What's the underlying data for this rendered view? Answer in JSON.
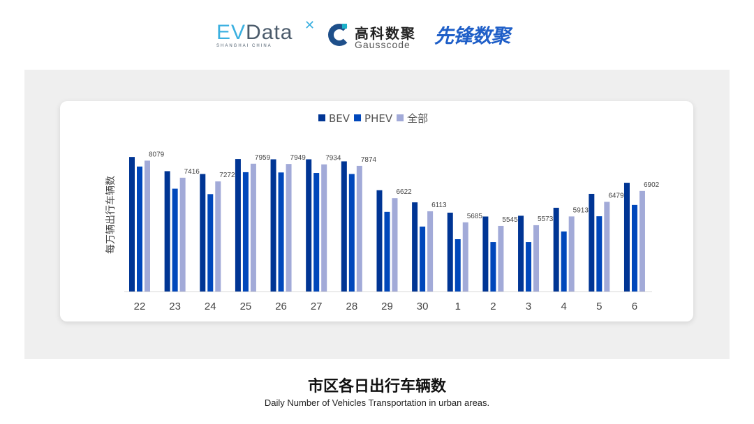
{
  "logos": {
    "evdata": {
      "text": "EVData",
      "sub": "SHANGHAI CHINA"
    },
    "gausscode": {
      "cn": "高科数聚",
      "en": "Gausscode"
    },
    "xianfeng": {
      "text": "先锋数聚"
    }
  },
  "caption": {
    "title": "市区各日出行车辆数",
    "subtitle": "Daily Number of Vehicles Transportation in urban areas."
  },
  "chart_data": {
    "type": "bar",
    "title": "",
    "xlabel": "",
    "ylabel": "每万辆出行车辆数",
    "ylim": [
      3000,
      8900
    ],
    "grid": false,
    "legend_position": "top-center",
    "categories": [
      "22",
      "23",
      "24",
      "25",
      "26",
      "27",
      "28",
      "29",
      "30",
      "1",
      "2",
      "3",
      "4",
      "5",
      "6"
    ],
    "series": [
      {
        "name": "BEV",
        "color": "#003594",
        "values": [
          8220,
          7670,
          7560,
          8140,
          8130,
          8130,
          8050,
          6930,
          6460,
          6060,
          5910,
          5940,
          6250,
          6790,
          7220
        ]
      },
      {
        "name": "PHEV",
        "color": "#0047bb",
        "values": [
          7850,
          6990,
          6780,
          7630,
          7620,
          7600,
          7560,
          6090,
          5520,
          5030,
          4920,
          4920,
          5330,
          5920,
          6360
        ]
      },
      {
        "name": "全部",
        "color": "#a2aad8",
        "values": [
          8079,
          7416,
          7272,
          7959,
          7949,
          7934,
          7874,
          6622,
          6113,
          5685,
          5545,
          5573,
          5913,
          6479,
          6902
        ],
        "data_labels": [
          "8079",
          "7416",
          "7272",
          "7959",
          "7949",
          "7934",
          "7874",
          "6622",
          "6113",
          "5685",
          "5545",
          "5573",
          "5913",
          "6479",
          "6902"
        ]
      }
    ]
  }
}
